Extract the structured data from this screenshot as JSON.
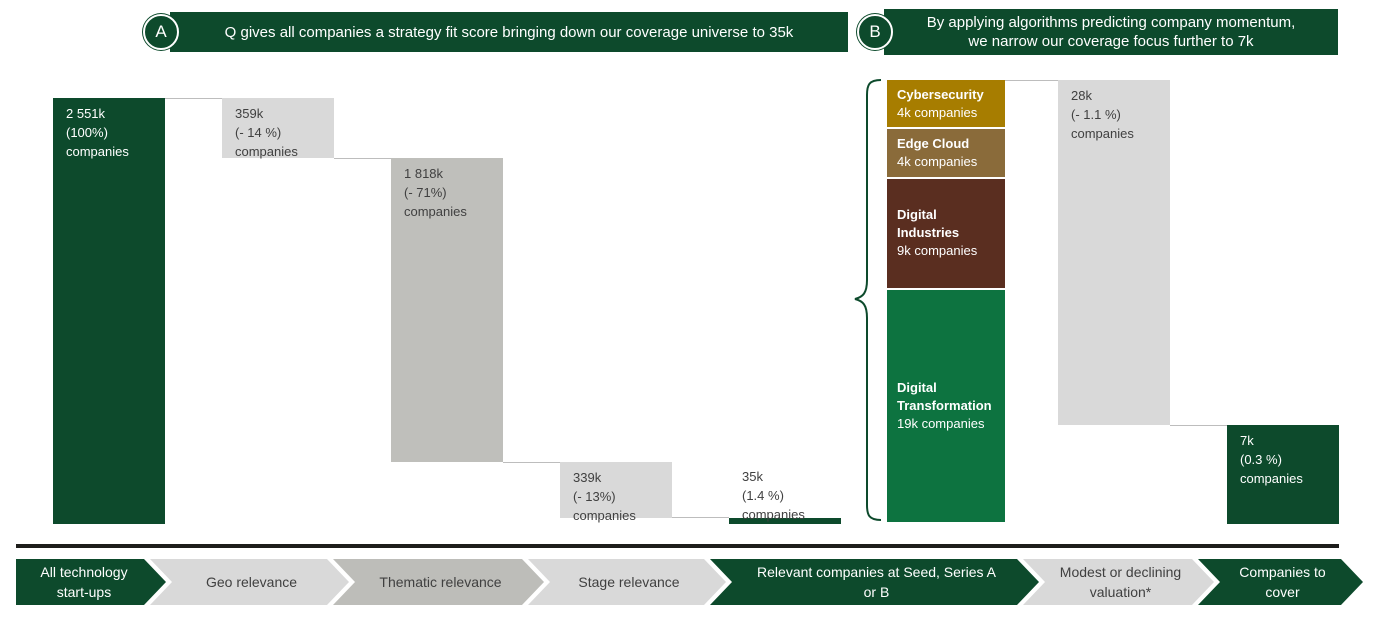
{
  "header": {
    "a": {
      "badge": "A",
      "text": "Q gives all companies a strategy fit score bringing down our coverage universe to 35k"
    },
    "b": {
      "badge": "B",
      "text": "By applying algorithms predicting company momentum,\nwe narrow our coverage focus further to 7k"
    }
  },
  "chart_data": {
    "type": "bar",
    "subtype": "waterfall",
    "value_unit": "thousand companies",
    "categories": [
      "All technology start-ups",
      "Geo relevance",
      "Thematic relevance",
      "Stage relevance",
      "Relevant companies at Seed, Series A or B",
      "Modest or declining valuation*",
      "Companies to cover"
    ],
    "values": [
      2551,
      -359,
      -1818,
      -339,
      35,
      -28,
      7
    ],
    "bar_labels": [
      "2 551k\n(100%)\ncompanies",
      "359k\n(- 14 %)\ncompanies",
      "1 818k\n(- 71%)\ncompanies",
      "339k\n(- 13%)\ncompanies",
      "35k\n(1.4 %)\ncompanies",
      "28k\n(- 1.1 %)\ncompanies",
      "7k\n(0.3 %)\ncompanies"
    ],
    "breakdown_of_35k": [
      {
        "name": "Cybersecurity",
        "value": 4,
        "label": "4k companies",
        "color": "#a77d00"
      },
      {
        "name": "Edge Cloud",
        "value": 4,
        "label": "4k companies",
        "color": "#8a6b3a"
      },
      {
        "name": "Digital Industries",
        "value": 9,
        "label": "9k companies",
        "color": "#5a2e20"
      },
      {
        "name": "Digital Transformation",
        "value": 19,
        "label": "19k companies",
        "color": "#0d7340"
      }
    ],
    "colors": {
      "total": "#0d4a2c",
      "decrease_light": "#d9d9d9",
      "decrease_dark": "#bfbfbb",
      "connector": "#bdbdbd"
    }
  },
  "process": {
    "steps": [
      {
        "label": "All technology\nstart-ups",
        "style": "dark"
      },
      {
        "label": "Geo relevance",
        "style": "light"
      },
      {
        "label": "Thematic relevance",
        "style": "mid"
      },
      {
        "label": "Stage relevance",
        "style": "light"
      },
      {
        "label": "Relevant companies at Seed, Series A\nor B",
        "style": "dark"
      },
      {
        "label": "Modest or declining\nvaluation*",
        "style": "light"
      },
      {
        "label": "Companies to\ncover",
        "style": "dark"
      }
    ]
  }
}
